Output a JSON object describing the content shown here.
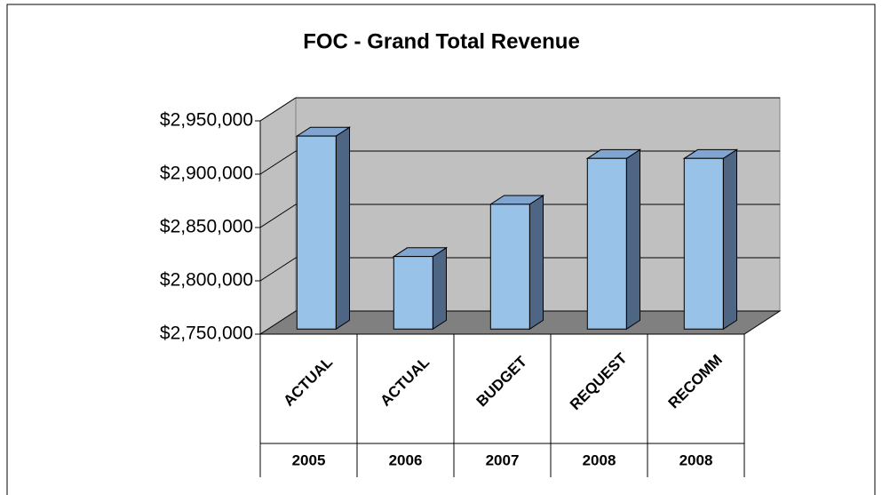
{
  "chart_data": {
    "type": "bar3d",
    "title": "FOC - Grand Total Revenue",
    "categories": [
      "ACTUAL",
      "ACTUAL",
      "BUDGET",
      "REQUEST",
      "RECOMM"
    ],
    "category_years": [
      "2005",
      "2006",
      "2007",
      "2008",
      "2008"
    ],
    "values": [
      2931000,
      2818000,
      2867000,
      2910000,
      2910000
    ],
    "color": "#99c2e8",
    "ylim": [
      2750000,
      2950000
    ],
    "yticks": [
      {
        "value": 2750000,
        "label": "$2,750,000"
      },
      {
        "value": 2800000,
        "label": "$2,800,000"
      },
      {
        "value": 2850000,
        "label": "$2,850,000"
      },
      {
        "value": 2900000,
        "label": "$2,900,000"
      },
      {
        "value": 2950000,
        "label": "$2,950,000"
      }
    ],
    "grid": true
  }
}
